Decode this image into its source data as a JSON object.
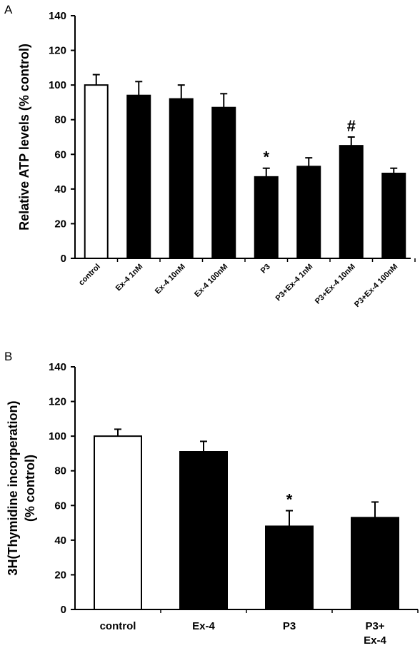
{
  "chart_data": [
    {
      "type": "bar",
      "panel_label": "A",
      "categories": [
        "control",
        "Ex-4 1nM",
        "Ex-4 10nM",
        "Ex-4 100nM",
        "P3",
        "P3+Ex-4 1nM",
        "P3+Ex-4 10nM",
        "P3+Ex-4 100nM"
      ],
      "values": [
        100,
        94,
        92,
        87,
        47,
        53,
        65,
        49
      ],
      "errors": [
        6,
        8,
        8,
        8,
        5,
        5,
        5,
        3
      ],
      "bar_fill": [
        "#ffffff",
        "#000000",
        "#000000",
        "#000000",
        "#000000",
        "#000000",
        "#000000",
        "#000000"
      ],
      "annotations": [
        "",
        "",
        "",
        "",
        "*",
        "",
        "#",
        ""
      ],
      "title": "",
      "xlabel": "",
      "ylabel": "Relative ATP levels (% control)",
      "ylim": [
        0,
        140
      ],
      "yticks": [
        "0",
        "20",
        "40",
        "60",
        "80",
        "100",
        "120",
        "140"
      ],
      "grid": false,
      "legend": "none"
    },
    {
      "type": "bar",
      "panel_label": "B",
      "categories": [
        [
          "control"
        ],
        [
          "Ex-4"
        ],
        [
          "P3"
        ],
        [
          "P3+",
          "Ex-4"
        ]
      ],
      "values": [
        100,
        91,
        48,
        53
      ],
      "errors": [
        4,
        6,
        9,
        9
      ],
      "bar_fill": [
        "#ffffff",
        "#000000",
        "#000000",
        "#000000"
      ],
      "annotations": [
        "",
        "",
        "*",
        ""
      ],
      "title": "",
      "xlabel": "",
      "ylabel": [
        "3H(Thymidine incorperation)",
        "(% control)"
      ],
      "ylim": [
        0,
        140
      ],
      "yticks": [
        "0",
        "20",
        "40",
        "60",
        "80",
        "100",
        "120",
        "140"
      ],
      "grid": false,
      "legend": "none"
    }
  ]
}
